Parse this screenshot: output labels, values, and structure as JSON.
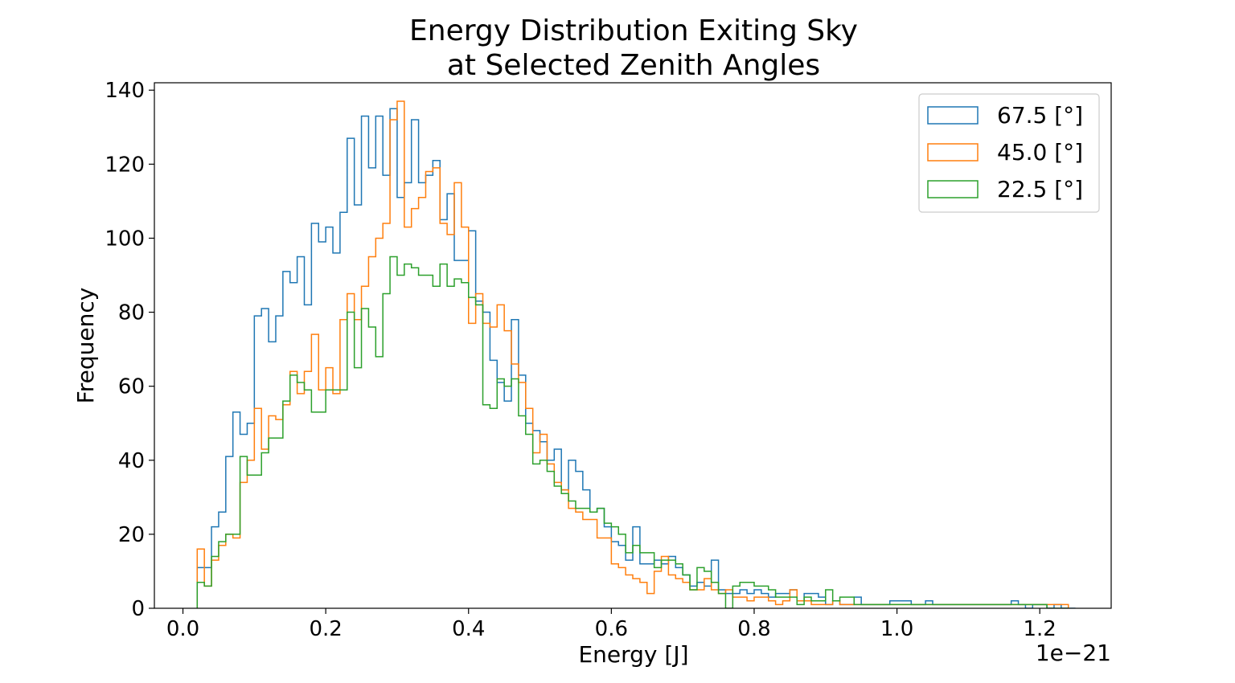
{
  "chart_data": {
    "type": "histogram",
    "title": "Energy Distribution Exiting Sky",
    "subtitle": "at Selected Zenith Angles",
    "xlabel": "Energy [J]",
    "ylabel": "Frequency",
    "x_offset_text": "1e−21",
    "x_scale": 1e-21,
    "xlim": [
      -0.04,
      1.3
    ],
    "ylim": [
      0,
      142
    ],
    "xticks": [
      0.0,
      0.2,
      0.4,
      0.6,
      0.8,
      1.0,
      1.2
    ],
    "xtick_labels": [
      "0.0",
      "0.2",
      "0.4",
      "0.6",
      "0.8",
      "1.0",
      "1.2"
    ],
    "yticks": [
      0,
      20,
      40,
      60,
      80,
      100,
      120,
      140
    ],
    "ytick_labels": [
      "0",
      "20",
      "40",
      "60",
      "80",
      "100",
      "120",
      "140"
    ],
    "grid": false,
    "legend_position": "top-right",
    "series": [
      {
        "name": "67.5 [°]",
        "color": "#1f77b4",
        "bin_start": 0.02,
        "bin_width": 0.01,
        "counts": [
          11,
          11,
          22,
          26,
          41,
          53,
          47,
          50,
          79,
          81,
          72,
          79,
          91,
          88,
          95,
          82,
          104,
          99,
          103,
          96,
          107,
          127,
          109,
          133,
          119,
          133,
          117,
          135,
          111,
          115,
          132,
          115,
          117,
          121,
          105,
          112,
          94,
          94,
          102,
          83,
          80,
          67,
          61,
          56,
          78,
          63,
          50,
          48,
          45,
          40,
          43,
          32,
          40,
          37,
          32,
          26,
          27,
          22,
          18,
          17,
          13,
          22,
          12,
          12,
          13,
          12,
          14,
          11,
          9,
          6,
          7,
          6,
          13,
          5,
          4,
          4,
          5,
          4,
          5,
          4,
          3,
          4,
          4,
          5,
          2,
          4,
          4,
          3,
          1,
          2,
          1,
          1,
          3,
          1,
          1,
          1,
          1,
          2,
          2,
          2,
          1,
          1,
          2,
          1,
          1,
          1,
          1,
          1,
          1,
          1,
          1,
          1,
          1,
          1,
          2,
          1,
          0,
          1,
          1,
          0,
          1,
          0,
          0
        ]
      },
      {
        "name": "45.0 [°]",
        "color": "#ff7f0e",
        "bin_start": 0.02,
        "bin_width": 0.01,
        "counts": [
          16,
          6,
          13,
          17,
          20,
          19,
          34,
          40,
          54,
          43,
          52,
          51,
          55,
          64,
          58,
          64,
          74,
          59,
          65,
          58,
          78,
          85,
          78,
          87,
          95,
          100,
          104,
          132,
          137,
          103,
          108,
          111,
          118,
          119,
          104,
          101,
          115,
          103,
          77,
          85,
          77,
          76,
          82,
          75,
          66,
          61,
          54,
          42,
          47,
          39,
          34,
          32,
          27,
          26,
          24,
          24,
          19,
          19,
          12,
          11,
          9,
          8,
          7,
          4,
          10,
          14,
          9,
          8,
          7,
          5,
          5,
          8,
          5,
          4,
          5,
          3,
          3,
          2,
          3,
          3,
          2,
          1,
          2,
          5,
          2,
          2,
          1,
          1,
          1,
          2,
          1,
          1,
          1,
          1,
          1,
          1,
          1,
          1,
          1,
          1,
          1,
          1,
          1,
          1,
          1,
          1,
          1,
          1,
          1,
          1,
          1,
          1,
          1,
          1,
          1,
          1,
          1,
          1,
          1,
          1,
          1,
          1
        ]
      },
      {
        "name": "22.5 [°]",
        "color": "#2ca02c",
        "bin_start": 0.02,
        "bin_width": 0.01,
        "counts": [
          7,
          6,
          14,
          18,
          20,
          20,
          41,
          36,
          36,
          42,
          46,
          46,
          56,
          63,
          61,
          59,
          53,
          53,
          59,
          59,
          59,
          80,
          65,
          81,
          76,
          68,
          85,
          95,
          90,
          93,
          92,
          90,
          90,
          87,
          93,
          87,
          89,
          88,
          84,
          82,
          55,
          54,
          62,
          60,
          62,
          52,
          47,
          39,
          40,
          37,
          33,
          31,
          29,
          27,
          27,
          26,
          27,
          23,
          22,
          20,
          15,
          17,
          15,
          15,
          11,
          13,
          13,
          12,
          9,
          5,
          11,
          10,
          7,
          4,
          0,
          6,
          7,
          7,
          6,
          6,
          5,
          3,
          3,
          3,
          1,
          3,
          2,
          2,
          5,
          2,
          3,
          3,
          1,
          1,
          1,
          1,
          1,
          1,
          1,
          1,
          1,
          1,
          1,
          1,
          1,
          1,
          1,
          1,
          1,
          1,
          1,
          1,
          1,
          1,
          1,
          1,
          1,
          1,
          1,
          0,
          0,
          0
        ]
      }
    ]
  }
}
